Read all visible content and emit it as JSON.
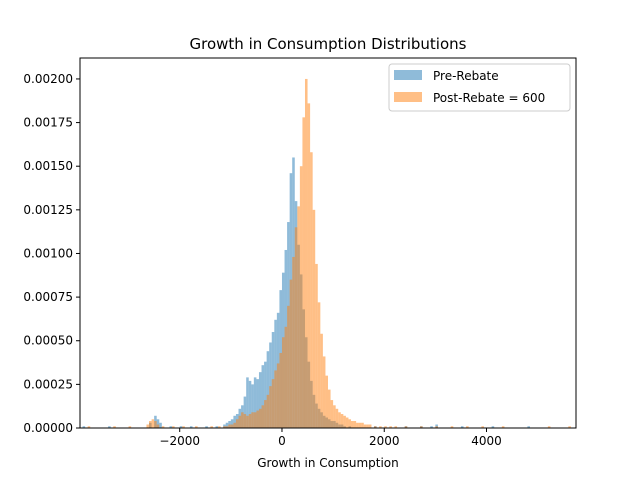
{
  "chart_data": {
    "type": "histogram",
    "title": "Growth in Consumption Distributions",
    "xlabel": "Growth in Consumption",
    "ylabel": "",
    "xlim": [
      -3950,
      5750
    ],
    "ylim": [
      0,
      0.00212
    ],
    "xticks": [
      -2000,
      0,
      2000,
      4000
    ],
    "xtick_labels": [
      "−2000",
      "0",
      "2000",
      "4000"
    ],
    "yticks": [
      0,
      0.00025,
      0.0005,
      0.00075,
      0.001,
      0.00125,
      0.0015,
      0.00175,
      0.002
    ],
    "ytick_labels": [
      "0.00000",
      "0.00025",
      "0.00050",
      "0.00075",
      "0.00100",
      "0.00125",
      "0.00150",
      "0.00175",
      "0.00200"
    ],
    "grid": false,
    "legend_position": "top-right",
    "bin_width": 50,
    "series": [
      {
        "name": "Pre-Rebate",
        "color": "#1f77b4",
        "opacity": 0.5,
        "points": [
          [
            -3900,
            1e-05
          ],
          [
            -3400,
            1e-05
          ],
          [
            -2600,
            3e-05
          ],
          [
            -2500,
            7e-05
          ],
          [
            -2450,
            5e-05
          ],
          [
            -2400,
            3e-05
          ],
          [
            -2200,
            1e-05
          ],
          [
            -2000,
            1e-05
          ],
          [
            -1800,
            1e-05
          ],
          [
            -1500,
            1e-05
          ],
          [
            -1300,
            1e-05
          ],
          [
            -1150,
            2e-05
          ],
          [
            -1100,
            3e-05
          ],
          [
            -1050,
            4e-05
          ],
          [
            -1000,
            5e-05
          ],
          [
            -950,
            7e-05
          ],
          [
            -900,
            8e-05
          ],
          [
            -850,
            0.00011
          ],
          [
            -800,
            0.00013
          ],
          [
            -750,
            0.00018
          ],
          [
            -700,
            0.00029
          ],
          [
            -650,
            0.00027
          ],
          [
            -600,
            0.00025
          ],
          [
            -550,
            0.00029
          ],
          [
            -500,
            0.00028
          ],
          [
            -450,
            0.00032
          ],
          [
            -400,
            0.00036
          ],
          [
            -350,
            0.00038
          ],
          [
            -300,
            0.00044
          ],
          [
            -250,
            0.00049
          ],
          [
            -200,
            0.00055
          ],
          [
            -150,
            0.00062
          ],
          [
            -100,
            0.00066
          ],
          [
            -50,
            0.00079
          ],
          [
            0,
            0.00089
          ],
          [
            50,
            0.00102
          ],
          [
            100,
            0.00118
          ],
          [
            150,
            0.00146
          ],
          [
            200,
            0.00155
          ],
          [
            250,
            0.0013
          ],
          [
            300,
            0.00105
          ],
          [
            350,
            0.00088
          ],
          [
            400,
            0.00068
          ],
          [
            450,
            0.00052
          ],
          [
            500,
            0.00038
          ],
          [
            550,
            0.00027
          ],
          [
            600,
            0.00019
          ],
          [
            650,
            0.00014
          ],
          [
            700,
            0.00011
          ],
          [
            750,
            9e-05
          ],
          [
            800,
            7e-05
          ],
          [
            850,
            6e-05
          ],
          [
            900,
            5e-05
          ],
          [
            950,
            4e-05
          ],
          [
            1000,
            4e-05
          ],
          [
            1050,
            3e-05
          ],
          [
            1100,
            2e-05
          ],
          [
            1150,
            2e-05
          ],
          [
            1200,
            1e-05
          ],
          [
            1300,
            1e-05
          ],
          [
            1800,
            1e-05
          ],
          [
            2400,
            1e-05
          ],
          [
            2700,
            1e-05
          ],
          [
            2900,
            1e-05
          ],
          [
            3000,
            2e-05
          ],
          [
            3500,
            1e-05
          ],
          [
            4100,
            1e-05
          ],
          [
            4800,
            1e-05
          ]
        ]
      },
      {
        "name": "Post-Rebate = 600",
        "color": "#ff7f0e",
        "opacity": 0.5,
        "points": [
          [
            -3800,
            1e-05
          ],
          [
            -3300,
            1e-05
          ],
          [
            -3000,
            1e-05
          ],
          [
            -2650,
            2e-05
          ],
          [
            -2600,
            4e-05
          ],
          [
            -2550,
            5e-05
          ],
          [
            -2500,
            4e-05
          ],
          [
            -2450,
            2e-05
          ],
          [
            -2350,
            1e-05
          ],
          [
            -2150,
            1e-05
          ],
          [
            -1950,
            1e-05
          ],
          [
            -1700,
            1e-05
          ],
          [
            -1400,
            1e-05
          ],
          [
            -1250,
            1e-05
          ],
          [
            -1150,
            1e-05
          ],
          [
            -1100,
            1e-05
          ],
          [
            -1050,
            2e-05
          ],
          [
            -1000,
            2e-05
          ],
          [
            -950,
            3e-05
          ],
          [
            -900,
            5e-05
          ],
          [
            -850,
            7e-05
          ],
          [
            -800,
            9e-05
          ],
          [
            -750,
            8e-05
          ],
          [
            -700,
            7e-05
          ],
          [
            -650,
            8e-05
          ],
          [
            -600,
            9e-05
          ],
          [
            -550,
            9e-05
          ],
          [
            -500,
            0.0001
          ],
          [
            -450,
            0.00011
          ],
          [
            -400,
            0.00013
          ],
          [
            -350,
            0.00016
          ],
          [
            -300,
            0.00019
          ],
          [
            -250,
            0.00024
          ],
          [
            -200,
            0.00028
          ],
          [
            -150,
            0.00033
          ],
          [
            -100,
            0.00037
          ],
          [
            -50,
            0.00043
          ],
          [
            0,
            0.00052
          ],
          [
            50,
            0.00058
          ],
          [
            100,
            0.0007
          ],
          [
            150,
            0.00085
          ],
          [
            200,
            0.00098
          ],
          [
            250,
            0.00115
          ],
          [
            300,
            0.00127
          ],
          [
            350,
            0.0015
          ],
          [
            400,
            0.00178
          ],
          [
            450,
            0.002
          ],
          [
            500,
            0.00186
          ],
          [
            550,
            0.00158
          ],
          [
            600,
            0.00125
          ],
          [
            650,
            0.00094
          ],
          [
            700,
            0.00072
          ],
          [
            750,
            0.00054
          ],
          [
            800,
            0.00041
          ],
          [
            850,
            0.0003
          ],
          [
            900,
            0.00022
          ],
          [
            950,
            0.00016
          ],
          [
            1000,
            0.00013
          ],
          [
            1050,
            0.00011
          ],
          [
            1100,
            9e-05
          ],
          [
            1150,
            8e-05
          ],
          [
            1200,
            7e-05
          ],
          [
            1250,
            6e-05
          ],
          [
            1300,
            5e-05
          ],
          [
            1350,
            4e-05
          ],
          [
            1400,
            4e-05
          ],
          [
            1450,
            3e-05
          ],
          [
            1500,
            3e-05
          ],
          [
            1550,
            3e-05
          ],
          [
            1600,
            2e-05
          ],
          [
            1650,
            2e-05
          ],
          [
            1700,
            2e-05
          ],
          [
            1800,
            1e-05
          ],
          [
            1900,
            1e-05
          ],
          [
            2000,
            1e-05
          ],
          [
            2100,
            1e-05
          ],
          [
            2200,
            1e-05
          ],
          [
            2400,
            1e-05
          ],
          [
            2700,
            1e-05
          ],
          [
            3000,
            1e-05
          ],
          [
            3300,
            1e-05
          ],
          [
            3600,
            1e-05
          ],
          [
            3900,
            1e-05
          ],
          [
            4300,
            1e-05
          ],
          [
            5200,
            1e-05
          ],
          [
            5600,
            1e-05
          ]
        ]
      }
    ]
  }
}
